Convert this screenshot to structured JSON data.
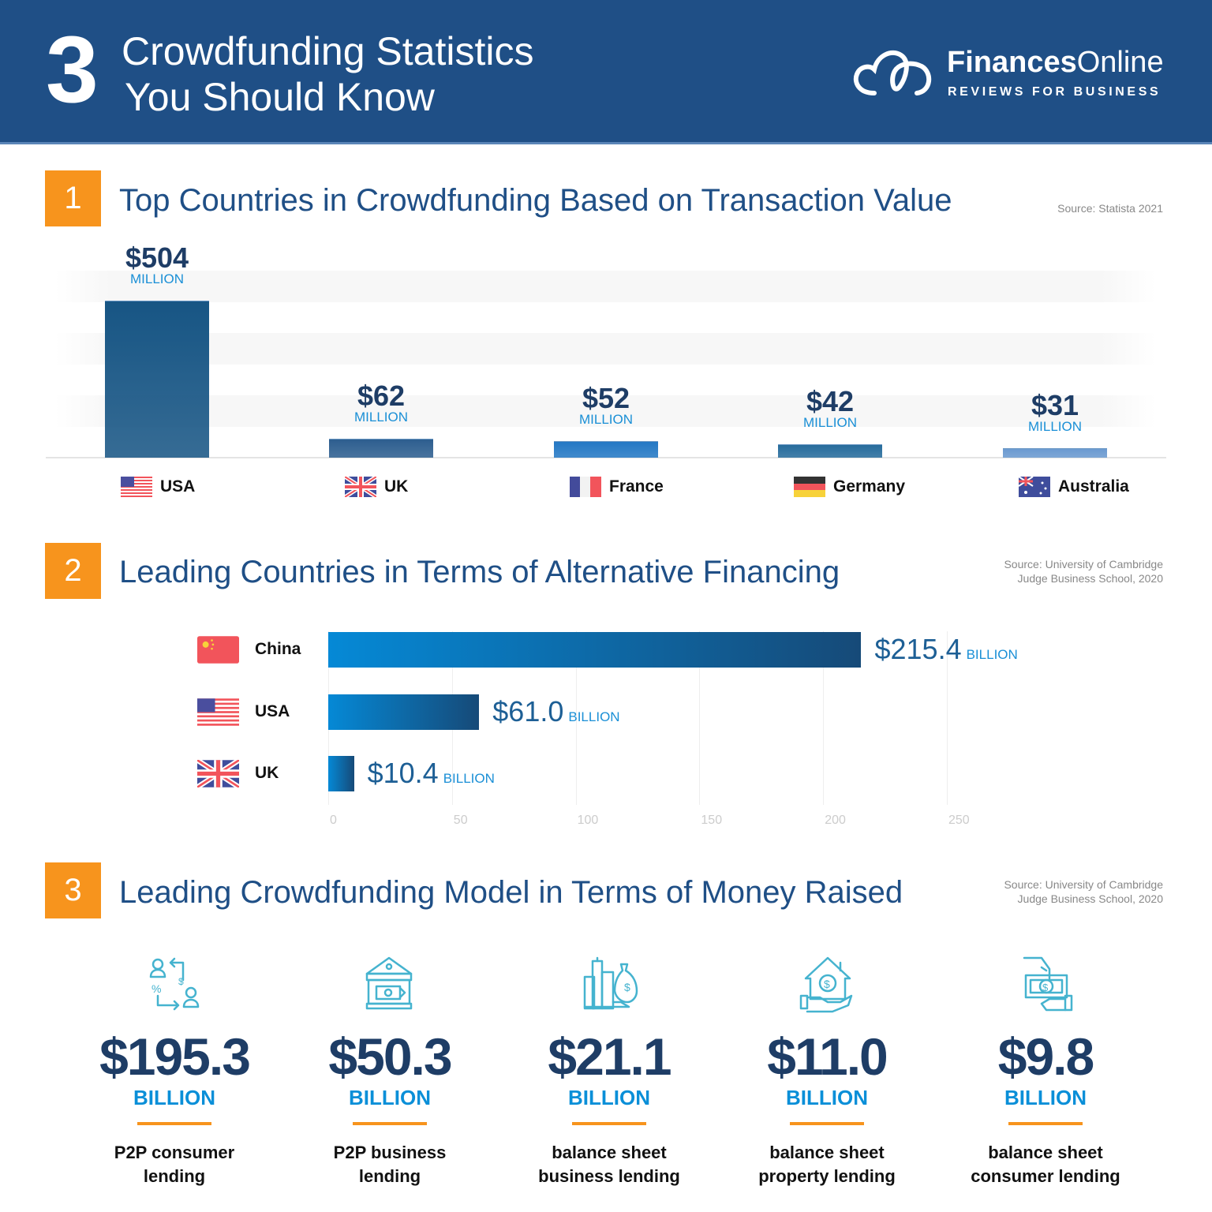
{
  "header": {
    "number": "3",
    "title_line1": "Crowdfunding Statistics",
    "title_line2": "You Should Know",
    "logo_bold": "Finances",
    "logo_light": "Online",
    "logo_tagline": "REVIEWS FOR BUSINESS"
  },
  "colors": {
    "header": "#1f4f86",
    "accent": "#f7941d",
    "icon": "#45b3cf",
    "value": "#1e3d66",
    "unit": "#0a8fd8"
  },
  "sections": [
    {
      "number": "1",
      "title": "Top Countries in Crowdfunding Based on Transaction Value",
      "source": "Source: Statista 2021"
    },
    {
      "number": "2",
      "title": "Leading Countries in Terms of Alternative Financing",
      "source_line1": "Source: University of Cambridge",
      "source_line2": "Judge Business School, 2020"
    },
    {
      "number": "3",
      "title": "Leading Crowdfunding Model in Terms of Money Raised",
      "source_line1": "Source: University of Cambridge",
      "source_line2": "Judge Business School, 2020"
    }
  ],
  "chart_data": [
    {
      "type": "bar",
      "categories": [
        "USA",
        "UK",
        "France",
        "Germany",
        "Australia"
      ],
      "values": [
        504,
        62,
        52,
        42,
        31
      ],
      "value_labels": [
        "$504",
        "$62",
        "$52",
        "$42",
        "$31"
      ],
      "unit": "MILLION",
      "flags": [
        "usa",
        "uk",
        "france",
        "germany",
        "australia"
      ],
      "bar_colors": [
        "#175584",
        "#2d5e8f",
        "#2478c4",
        "#276c9c",
        "#6b9ad0"
      ]
    },
    {
      "type": "bar",
      "orientation": "horizontal",
      "categories": [
        "China",
        "USA",
        "UK"
      ],
      "values": [
        215.4,
        61.0,
        10.4
      ],
      "value_labels": [
        "$215.4",
        "$61.0",
        "$10.4"
      ],
      "unit": "BILLION",
      "flags": [
        "china",
        "usa",
        "uk"
      ],
      "xlim": [
        0,
        250
      ],
      "xticks": [
        "0",
        "50",
        "100",
        "150",
        "200",
        "250"
      ],
      "grid": true
    }
  ],
  "models": [
    {
      "value": "$195.3",
      "unit": "BILLION",
      "label1": "P2P consumer",
      "label2": "lending",
      "icon": "p2p-exchange-icon"
    },
    {
      "value": "$50.3",
      "unit": "BILLION",
      "label1": "P2P business",
      "label2": "lending",
      "icon": "bank-money-icon"
    },
    {
      "value": "$21.1",
      "unit": "BILLION",
      "label1": "balance sheet",
      "label2": "business lending",
      "icon": "buildings-moneybag-icon"
    },
    {
      "value": "$11.0",
      "unit": "BILLION",
      "label1": "balance sheet",
      "label2": "property lending",
      "icon": "house-hand-icon"
    },
    {
      "value": "$9.8",
      "unit": "BILLION",
      "label1": "balance sheet",
      "label2": "consumer lending",
      "icon": "hand-cash-icon"
    }
  ]
}
